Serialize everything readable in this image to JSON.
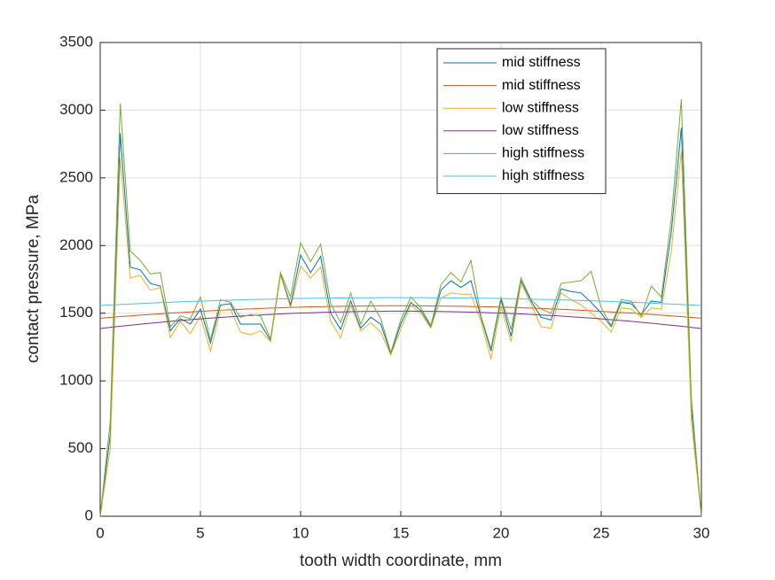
{
  "chart_data": {
    "type": "line",
    "xlabel": "tooth width coordinate, mm",
    "ylabel": "contact pressure, MPa",
    "x": [
      0,
      0.5,
      1,
      1.5,
      2,
      2.5,
      3,
      3.5,
      4,
      4.5,
      5,
      5.5,
      6,
      6.5,
      7,
      7.5,
      8,
      8.5,
      9,
      9.5,
      10,
      10.5,
      11,
      11.5,
      12,
      12.5,
      13,
      13.5,
      14,
      14.5,
      15,
      15.5,
      16,
      16.5,
      17,
      17.5,
      18,
      18.5,
      19,
      19.5,
      20,
      20.5,
      21,
      21.5,
      22,
      22.5,
      23,
      23.5,
      24,
      24.5,
      25,
      25.5,
      26,
      26.5,
      27,
      27.5,
      28,
      28.5,
      29,
      29.5,
      30
    ],
    "series": [
      {
        "name": "mid stiffness",
        "color": "#0072bd",
        "values": [
          0,
          600,
          2830,
          1840,
          1820,
          1720,
          1700,
          1370,
          1460,
          1420,
          1530,
          1280,
          1560,
          1570,
          1420,
          1420,
          1420,
          1300,
          1790,
          1560,
          1930,
          1800,
          1920,
          1500,
          1380,
          1590,
          1390,
          1470,
          1420,
          1200,
          1420,
          1580,
          1520,
          1400,
          1670,
          1740,
          1690,
          1740,
          1470,
          1220,
          1600,
          1330,
          1740,
          1590,
          1470,
          1450,
          1680,
          1660,
          1650,
          1580,
          1500,
          1400,
          1580,
          1570,
          1490,
          1590,
          1580,
          2100,
          2870,
          800,
          0
        ]
      },
      {
        "name": "mid stiffness",
        "color": "#d95319",
        "values": [
          1463,
          1469,
          1475,
          1480,
          1486,
          1491,
          1496,
          1501,
          1505,
          1510,
          1514,
          1518,
          1522,
          1525,
          1529,
          1532,
          1535,
          1538,
          1540,
          1543,
          1545,
          1547,
          1548,
          1550,
          1551,
          1552,
          1553,
          1554,
          1555,
          1555,
          1555,
          1555,
          1555,
          1554,
          1553,
          1552,
          1551,
          1550,
          1548,
          1547,
          1545,
          1543,
          1540,
          1538,
          1535,
          1532,
          1529,
          1525,
          1522,
          1518,
          1514,
          1510,
          1505,
          1501,
          1496,
          1491,
          1486,
          1480,
          1475,
          1469,
          1463
        ]
      },
      {
        "name": "low stiffness",
        "color": "#edb120",
        "values": [
          0,
          500,
          2650,
          1760,
          1780,
          1670,
          1690,
          1320,
          1440,
          1350,
          1480,
          1220,
          1520,
          1530,
          1360,
          1340,
          1370,
          1290,
          1780,
          1540,
          1850,
          1760,
          1840,
          1440,
          1320,
          1560,
          1370,
          1430,
          1360,
          1190,
          1380,
          1560,
          1500,
          1390,
          1610,
          1650,
          1640,
          1640,
          1440,
          1160,
          1550,
          1290,
          1720,
          1570,
          1400,
          1390,
          1650,
          1600,
          1560,
          1500,
          1440,
          1360,
          1540,
          1530,
          1470,
          1540,
          1530,
          1960,
          2700,
          700,
          0
        ]
      },
      {
        "name": "low stiffness",
        "color": "#7e2f8e",
        "values": [
          1387,
          1395,
          1404,
          1411,
          1419,
          1426,
          1433,
          1440,
          1446,
          1452,
          1458,
          1464,
          1469,
          1474,
          1479,
          1483,
          1487,
          1491,
          1495,
          1498,
          1501,
          1503,
          1506,
          1508,
          1510,
          1511,
          1513,
          1514,
          1514,
          1515,
          1515,
          1515,
          1514,
          1514,
          1513,
          1511,
          1510,
          1508,
          1506,
          1503,
          1501,
          1498,
          1495,
          1491,
          1487,
          1483,
          1479,
          1474,
          1469,
          1464,
          1458,
          1452,
          1446,
          1440,
          1433,
          1426,
          1419,
          1411,
          1404,
          1395,
          1387
        ]
      },
      {
        "name": "high stiffness",
        "color": "#77ac30",
        "values": [
          0,
          700,
          3050,
          1960,
          1890,
          1790,
          1800,
          1400,
          1480,
          1460,
          1620,
          1300,
          1600,
          1580,
          1470,
          1490,
          1480,
          1310,
          1800,
          1620,
          2020,
          1880,
          2010,
          1570,
          1430,
          1650,
          1420,
          1590,
          1460,
          1210,
          1450,
          1620,
          1540,
          1410,
          1710,
          1800,
          1730,
          1890,
          1480,
          1240,
          1620,
          1380,
          1760,
          1600,
          1530,
          1500,
          1720,
          1730,
          1740,
          1810,
          1540,
          1410,
          1600,
          1590,
          1480,
          1700,
          1620,
          2200,
          3080,
          870,
          0
        ]
      },
      {
        "name": "high stiffness",
        "color": "#4dbeee",
        "values": [
          1557,
          1561,
          1564,
          1568,
          1571,
          1575,
          1578,
          1581,
          1584,
          1587,
          1589,
          1592,
          1594,
          1596,
          1599,
          1601,
          1602,
          1604,
          1606,
          1607,
          1609,
          1610,
          1611,
          1612,
          1613,
          1613,
          1614,
          1614,
          1615,
          1615,
          1615,
          1615,
          1615,
          1614,
          1614,
          1613,
          1613,
          1612,
          1611,
          1610,
          1609,
          1607,
          1606,
          1604,
          1602,
          1601,
          1599,
          1596,
          1594,
          1592,
          1589,
          1587,
          1584,
          1581,
          1578,
          1575,
          1571,
          1568,
          1564,
          1561,
          1557
        ]
      }
    ],
    "xlim": [
      0,
      30
    ],
    "xticks": [
      0,
      5,
      10,
      15,
      20,
      25,
      30
    ],
    "ylim": [
      0,
      3500
    ],
    "yticks": [
      0,
      500,
      1000,
      1500,
      2000,
      2500,
      3000,
      3500
    ],
    "grid": true,
    "legend": "northeast"
  }
}
